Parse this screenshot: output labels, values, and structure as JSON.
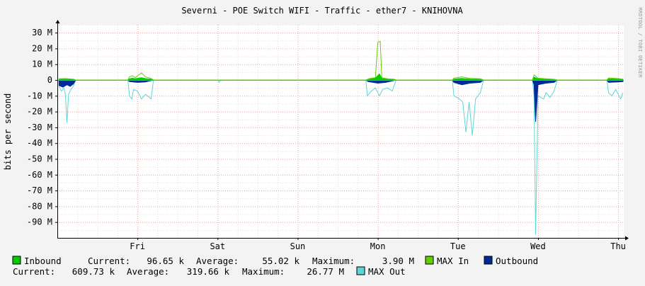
{
  "title": "Severni - POE Switch WIFI - Traffic - ether7 - KNIHOVNA",
  "watermark": "RRDTOOL / TOBI OETIKER",
  "colors": {
    "canvas_bg": "#ffffff",
    "page_bg": "#f3f3f3",
    "grid_minor": "#e0e0e0",
    "grid_major": "#f4a6a6",
    "inbound": "#00cc00",
    "max_in": "#66cc00",
    "outbound": "#002a97",
    "max_out": "#5fd6d6",
    "zero_line": "#00c8c8",
    "axis": "#000000"
  },
  "chart_data": {
    "type": "area",
    "title": "Severni - POE Switch WIFI - Traffic - ether7 - KNIHOVNA",
    "ylabel": "bits per second",
    "xlabel": "",
    "ylim": [
      -100,
      35
    ],
    "y_unit": "M",
    "y_ticks": [
      30,
      20,
      10,
      0,
      -10,
      -20,
      -30,
      -40,
      -50,
      -60,
      -70,
      -80,
      -90
    ],
    "y_tick_labels": [
      "30 M",
      "20 M",
      "10 M",
      "0",
      "-10 M",
      "-20 M",
      "-30 M",
      "-40 M",
      "-50 M",
      "-60 M",
      "-70 M",
      "-80 M",
      "-90 M"
    ],
    "x_range": [
      -1,
      6.07
    ],
    "x_ticks": [
      0,
      1,
      2,
      3,
      4,
      5,
      6
    ],
    "x_tick_labels": [
      "Fri",
      "Sat",
      "Sun",
      "Mon",
      "Tue",
      "Wed",
      "Thu"
    ],
    "grid": true,
    "legend_placement": "bottom",
    "series": [
      {
        "name": "Inbound",
        "color": "#00cc00",
        "points": [
          [
            -0.98,
            0.4
          ],
          [
            -0.9,
            0.5
          ],
          [
            -0.8,
            0.4
          ],
          [
            -0.77,
            0
          ],
          [
            -0.12,
            0
          ],
          [
            -0.1,
            0.8
          ],
          [
            -0.06,
            1.2
          ],
          [
            -0.03,
            0.8
          ],
          [
            0.05,
            1.5
          ],
          [
            0.1,
            0.9
          ],
          [
            0.17,
            0.5
          ],
          [
            0.2,
            0
          ],
          [
            2.85,
            0
          ],
          [
            2.9,
            0.5
          ],
          [
            2.97,
            1.2
          ],
          [
            3.02,
            3.9
          ],
          [
            3.05,
            1.0
          ],
          [
            3.12,
            0.6
          ],
          [
            3.2,
            0.4
          ],
          [
            3.23,
            0
          ],
          [
            3.93,
            0
          ],
          [
            3.95,
            0.6
          ],
          [
            4.05,
            1.0
          ],
          [
            4.15,
            0.6
          ],
          [
            4.28,
            0.4
          ],
          [
            4.32,
            0
          ],
          [
            4.93,
            0
          ],
          [
            4.95,
            1.8
          ],
          [
            5.0,
            0.8
          ],
          [
            5.1,
            0.6
          ],
          [
            5.2,
            0.3
          ],
          [
            5.24,
            0
          ],
          [
            5.86,
            0
          ],
          [
            5.88,
            0.8
          ],
          [
            6.0,
            0.5
          ],
          [
            6.06,
            0.4
          ]
        ]
      },
      {
        "name": "MAX In",
        "color": "#66cc00",
        "points": [
          [
            -0.98,
            0.8
          ],
          [
            -0.9,
            0.9
          ],
          [
            -0.8,
            0.6
          ],
          [
            -0.77,
            0
          ],
          [
            -0.12,
            0
          ],
          [
            -0.1,
            2.0
          ],
          [
            -0.06,
            2.8
          ],
          [
            -0.03,
            1.5
          ],
          [
            0.05,
            4.5
          ],
          [
            0.1,
            2.0
          ],
          [
            0.17,
            1.0
          ],
          [
            0.2,
            0
          ],
          [
            2.85,
            0
          ],
          [
            2.9,
            1.0
          ],
          [
            2.97,
            1.5
          ],
          [
            3.0,
            24.0
          ],
          [
            3.03,
            24.5
          ],
          [
            3.05,
            1.5
          ],
          [
            3.12,
            0.8
          ],
          [
            3.2,
            0.5
          ],
          [
            3.23,
            0
          ],
          [
            3.93,
            0
          ],
          [
            3.95,
            1.2
          ],
          [
            4.05,
            2.0
          ],
          [
            4.15,
            1.0
          ],
          [
            4.28,
            0.8
          ],
          [
            4.32,
            0
          ],
          [
            4.93,
            0
          ],
          [
            4.95,
            3.2
          ],
          [
            5.0,
            1.2
          ],
          [
            5.1,
            0.8
          ],
          [
            5.2,
            0.5
          ],
          [
            5.24,
            0
          ],
          [
            5.86,
            0
          ],
          [
            5.88,
            1.3
          ],
          [
            6.0,
            0.9
          ],
          [
            6.06,
            0.6
          ]
        ]
      },
      {
        "name": "Outbound",
        "color": "#002a97",
        "points": [
          [
            -0.98,
            -3.5
          ],
          [
            -0.93,
            -4.5
          ],
          [
            -0.88,
            -3.0
          ],
          [
            -0.84,
            -4.0
          ],
          [
            -0.8,
            -2.5
          ],
          [
            -0.77,
            0
          ],
          [
            -0.12,
            0
          ],
          [
            -0.1,
            -1.0
          ],
          [
            0.0,
            -1.5
          ],
          [
            0.1,
            -1.2
          ],
          [
            0.2,
            0
          ],
          [
            2.85,
            0
          ],
          [
            2.88,
            -1.0
          ],
          [
            3.0,
            -2.0
          ],
          [
            3.1,
            -1.5
          ],
          [
            3.23,
            0
          ],
          [
            3.93,
            0
          ],
          [
            3.95,
            -1.5
          ],
          [
            4.05,
            -3.0
          ],
          [
            4.15,
            -2.0
          ],
          [
            4.28,
            -1.5
          ],
          [
            4.32,
            0
          ],
          [
            4.93,
            0
          ],
          [
            4.95,
            -3.0
          ],
          [
            4.97,
            -26.5
          ],
          [
            5.0,
            -3.0
          ],
          [
            5.1,
            -2.0
          ],
          [
            5.2,
            -1.5
          ],
          [
            5.24,
            0
          ],
          [
            5.86,
            0
          ],
          [
            5.88,
            -1.5
          ],
          [
            6.0,
            -1.2
          ],
          [
            6.06,
            -1.0
          ]
        ]
      },
      {
        "name": "MAX Out",
        "color": "#5fd6d6",
        "points": [
          [
            -0.98,
            -4.0
          ],
          [
            -0.95,
            -7.0
          ],
          [
            -0.92,
            -5.0
          ],
          [
            -0.9,
            -9.0
          ],
          [
            -0.88,
            -27.0
          ],
          [
            -0.86,
            -9.0
          ],
          [
            -0.83,
            -6.0
          ],
          [
            -0.8,
            -4.0
          ],
          [
            -0.77,
            0
          ],
          [
            -0.12,
            0
          ],
          [
            -0.1,
            -10.0
          ],
          [
            -0.07,
            -12.0
          ],
          [
            -0.05,
            -6.0
          ],
          [
            0.0,
            -7.0
          ],
          [
            0.05,
            -12.0
          ],
          [
            0.1,
            -9.0
          ],
          [
            0.17,
            -12.0
          ],
          [
            0.2,
            0
          ],
          [
            1.0,
            0
          ],
          [
            1.02,
            -1.5
          ],
          [
            1.04,
            0
          ],
          [
            2.85,
            0
          ],
          [
            2.87,
            -10.0
          ],
          [
            2.92,
            -7.0
          ],
          [
            2.97,
            -5.0
          ],
          [
            3.02,
            -10.0
          ],
          [
            3.06,
            -6.0
          ],
          [
            3.12,
            -5.0
          ],
          [
            3.18,
            -7.0
          ],
          [
            3.23,
            0
          ],
          [
            3.93,
            0
          ],
          [
            3.95,
            -10.0
          ],
          [
            4.02,
            -12.0
          ],
          [
            4.06,
            -14.0
          ],
          [
            4.1,
            -33.0
          ],
          [
            4.14,
            -14.0
          ],
          [
            4.18,
            -35.0
          ],
          [
            4.22,
            -12.0
          ],
          [
            4.28,
            -8.0
          ],
          [
            4.32,
            0
          ],
          [
            4.93,
            0
          ],
          [
            4.95,
            -10.0
          ],
          [
            4.97,
            -98.0
          ],
          [
            5.0,
            -10.0
          ],
          [
            5.07,
            -12.0
          ],
          [
            5.1,
            -8.0
          ],
          [
            5.15,
            -11.0
          ],
          [
            5.2,
            -7.0
          ],
          [
            5.24,
            0
          ],
          [
            5.86,
            0
          ],
          [
            5.88,
            -8.0
          ],
          [
            5.92,
            -10.0
          ],
          [
            5.97,
            -6.0
          ],
          [
            6.03,
            -12.0
          ],
          [
            6.06,
            -8.0
          ]
        ]
      }
    ]
  },
  "legend": {
    "row1": {
      "inbound_label": "Inbound",
      "current_label": "Current:",
      "current_value": "96.65 k",
      "average_label": "Average:",
      "average_value": "55.02 k",
      "maximum_label": "Maximum:",
      "maximum_value": "3.90 M",
      "max_in_label": "MAX In",
      "outbound_label": "Outbound"
    },
    "row2": {
      "current_label": "Current:",
      "current_value": "609.73 k",
      "average_label": "Average:",
      "average_value": "319.66 k",
      "maximum_label": "Maximum:",
      "maximum_value": "26.77 M",
      "max_out_label": "MAX Out"
    }
  }
}
